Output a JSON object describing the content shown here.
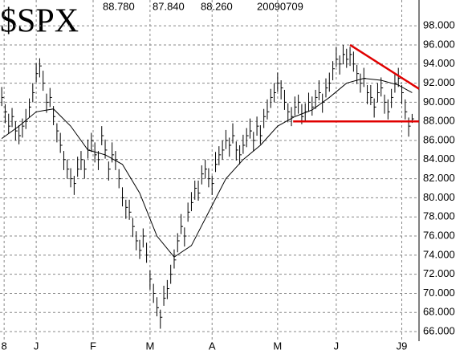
{
  "chart_data": {
    "type": "ohlc",
    "title": "$SPX",
    "header": {
      "high": "88.780",
      "low": "87.840",
      "close": "88.260",
      "date": "20090709"
    },
    "xlim": [
      -0.5,
      121
    ],
    "xticks": [
      {
        "value": 0.7,
        "label": "8"
      },
      {
        "value": 10,
        "label": "J"
      },
      {
        "value": 26.5,
        "label": "F"
      },
      {
        "value": 43,
        "label": "M"
      },
      {
        "value": 61,
        "label": "A"
      },
      {
        "value": 80,
        "label": "M"
      },
      {
        "value": 97,
        "label": "J"
      },
      {
        "value": 116,
        "label": "J9"
      }
    ],
    "ylim": [
      65,
      100.7
    ],
    "yticks": [
      {
        "value": 66,
        "label": "66.000"
      },
      {
        "value": 68,
        "label": "68.000"
      },
      {
        "value": 70,
        "label": "70.000"
      },
      {
        "value": 72,
        "label": "72.000"
      },
      {
        "value": 74,
        "label": "74.000"
      },
      {
        "value": 76,
        "label": "76.000"
      },
      {
        "value": 78,
        "label": "78.000"
      },
      {
        "value": 80,
        "label": "80.000"
      },
      {
        "value": 82,
        "label": "82.000"
      },
      {
        "value": 84,
        "label": "84.000"
      },
      {
        "value": 86,
        "label": "86.000"
      },
      {
        "value": 88,
        "label": "88.000"
      },
      {
        "value": 90,
        "label": "90.000"
      },
      {
        "value": 92,
        "label": "92.000"
      },
      {
        "value": 94,
        "label": "94.000"
      },
      {
        "value": 96,
        "label": "96.000"
      },
      {
        "value": 98,
        "label": "98.000"
      }
    ],
    "grid": true,
    "color": "#000000",
    "high": [
      91.6,
      89.8,
      88.8,
      89.4,
      88.0,
      87.6,
      88.3,
      89.3,
      90.4,
      92.0,
      94.1,
      94.6,
      93.3,
      90.9,
      91.5,
      89.6,
      87.8,
      86.8,
      84.9,
      84.0,
      83.1,
      82.3,
      84.3,
      84.9,
      84.0,
      86.1,
      86.8,
      85.8,
      84.9,
      87.5,
      86.1,
      83.8,
      85.8,
      84.9,
      83.0,
      81.1,
      79.8,
      79.8,
      77.9,
      76.5,
      75.6,
      76.8,
      75.3,
      72.4,
      71.0,
      69.6,
      68.3,
      70.8,
      71.4,
      73.0,
      74.6,
      76.3,
      78.3,
      76.9,
      79.5,
      80.6,
      81.8,
      81.8,
      83.4,
      84.0,
      83.1,
      82.3,
      84.8,
      85.4,
      86.0,
      87.1,
      86.3,
      87.8,
      85.9,
      85.5,
      86.6,
      87.3,
      88.3,
      86.9,
      88.5,
      87.6,
      89.3,
      90.3,
      91.4,
      92.0,
      93.1,
      92.3,
      91.3,
      89.9,
      89.5,
      90.6,
      90.8,
      89.8,
      89.9,
      91.0,
      90.6,
      91.3,
      92.3,
      90.9,
      92.5,
      93.1,
      94.3,
      95.8,
      94.9,
      96.0,
      95.6,
      95.8,
      95.3,
      93.9,
      93.0,
      93.6,
      91.8,
      91.8,
      90.4,
      92.0,
      92.6,
      90.8,
      90.3,
      91.4,
      93.0,
      93.6,
      91.8,
      90.3,
      88.4,
      88.78
    ],
    "low": [
      89.6,
      87.8,
      86.7,
      87.4,
      86.0,
      85.6,
      86.3,
      87.2,
      88.4,
      90.0,
      92.1,
      92.6,
      91.2,
      88.9,
      89.5,
      87.6,
      85.8,
      84.7,
      82.9,
      82.0,
      81.1,
      80.3,
      82.2,
      82.9,
      82.0,
      84.1,
      84.8,
      83.7,
      82.9,
      85.5,
      84.1,
      81.8,
      83.7,
      82.9,
      81.0,
      79.1,
      77.8,
      77.7,
      75.9,
      74.5,
      73.6,
      74.8,
      73.2,
      70.4,
      69.0,
      67.6,
      66.3,
      68.7,
      69.4,
      71.0,
      72.6,
      74.3,
      76.2,
      74.9,
      77.5,
      78.6,
      79.8,
      79.7,
      81.4,
      82.0,
      81.1,
      80.3,
      82.7,
      83.4,
      84.0,
      85.1,
      84.3,
      85.7,
      83.9,
      83.5,
      84.6,
      85.3,
      86.2,
      84.9,
      86.5,
      85.6,
      87.3,
      88.2,
      89.4,
      90.0,
      91.1,
      90.3,
      89.2,
      87.9,
      87.5,
      88.6,
      88.8,
      87.7,
      87.9,
      89.0,
      88.6,
      89.3,
      90.2,
      88.9,
      90.5,
      91.1,
      92.3,
      93.7,
      92.9,
      94.0,
      93.6,
      93.8,
      93.2,
      91.9,
      91.0,
      91.6,
      89.8,
      89.7,
      88.4,
      90.0,
      90.6,
      88.8,
      88.2,
      89.4,
      91.0,
      91.6,
      89.8,
      88.2,
      86.4,
      87.84
    ],
    "close": [
      90.5,
      89.0,
      87.5,
      88.5,
      87.0,
      86.5,
      87.5,
      88.0,
      89.5,
      91.0,
      93.0,
      93.8,
      92.0,
      90.0,
      90.5,
      88.5,
      87.0,
      85.5,
      84.0,
      83.0,
      82.0,
      81.5,
      83.0,
      84.0,
      83.0,
      85.0,
      86.0,
      84.5,
      84.0,
      86.5,
      85.0,
      83.0,
      84.5,
      84.0,
      82.0,
      80.0,
      79.0,
      78.5,
      77.0,
      75.5,
      74.5,
      76.0,
      74.0,
      71.5,
      70.0,
      68.5,
      67.5,
      69.5,
      70.5,
      72.0,
      73.5,
      75.5,
      77.0,
      76.0,
      78.5,
      79.5,
      81.0,
      80.5,
      82.5,
      83.0,
      82.0,
      81.5,
      83.5,
      84.5,
      85.0,
      86.0,
      85.5,
      86.5,
      85.0,
      84.5,
      85.5,
      86.5,
      87.0,
      86.0,
      87.5,
      86.5,
      88.5,
      89.0,
      90.5,
      91.0,
      92.0,
      91.5,
      90.0,
      89.0,
      88.5,
      89.5,
      90.0,
      88.5,
      89.0,
      90.0,
      89.5,
      90.5,
      91.0,
      90.0,
      91.5,
      92.0,
      93.5,
      94.5,
      94.0,
      95.0,
      94.5,
      95.0,
      94.0,
      93.0,
      92.0,
      92.5,
      91.0,
      90.5,
      89.5,
      91.0,
      91.5,
      90.0,
      89.0,
      90.5,
      92.0,
      92.5,
      91.0,
      89.0,
      87.5,
      88.26
    ],
    "moving_average": {
      "color": "#000000",
      "x": [
        0,
        5,
        10,
        15,
        20,
        25,
        30,
        35,
        40,
        45,
        50,
        55,
        60,
        65,
        70,
        75,
        80,
        85,
        90,
        95,
        100,
        105,
        110,
        115,
        119
      ],
      "values": [
        86.2,
        87.5,
        89.0,
        89.3,
        87.5,
        85.0,
        84.5,
        83.5,
        80.5,
        76.0,
        73.8,
        75.0,
        78.5,
        82.0,
        84.0,
        85.5,
        87.5,
        88.5,
        89.2,
        90.5,
        92.0,
        92.5,
        92.3,
        91.8,
        91.0
      ]
    },
    "trendlines": [
      {
        "color": "#e00000",
        "x": [
          101,
          121
        ],
        "values": [
          96,
          91.4
        ]
      },
      {
        "color": "#e00000",
        "x": [
          84.5,
          121
        ],
        "values": [
          88,
          88
        ]
      }
    ]
  }
}
